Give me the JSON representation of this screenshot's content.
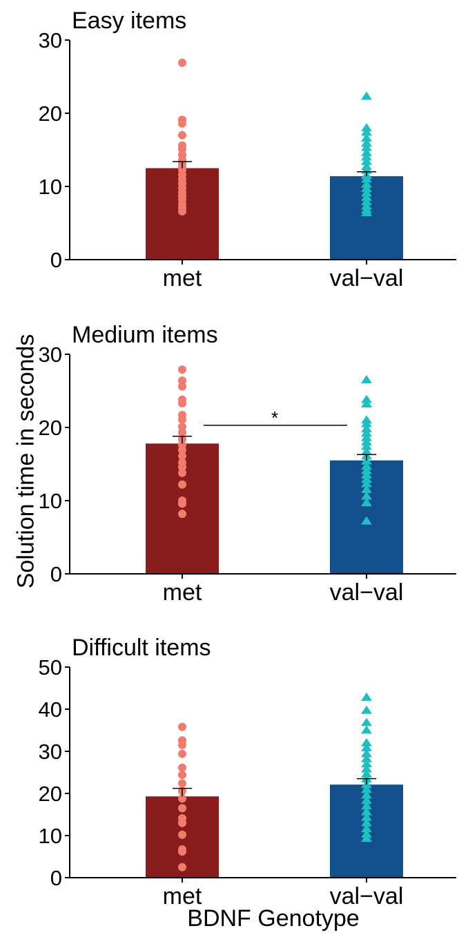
{
  "ylabel": "Solution time in seconds",
  "xlabel": "BDNF Genotype",
  "colors": {
    "met_bar": "#8a1c1b",
    "valval_bar": "#124f8c",
    "met_points": "#f07b6f",
    "valval_points": "#1ebfc3"
  },
  "chart_data": [
    {
      "type": "bar",
      "title": "Easy items",
      "categories": [
        "met",
        "val−val"
      ],
      "values": [
        12.5,
        11.4
      ],
      "error_upper": [
        13.4,
        12.0
      ],
      "ylim": [
        0,
        30
      ],
      "yticks": [
        "0",
        "10",
        "20",
        "30"
      ],
      "points": [
        [
          26.9,
          19.1,
          18.6,
          17.0,
          15.6,
          15.1,
          14.3,
          13.6,
          13.1,
          12.6,
          12.2,
          11.6,
          11.0,
          10.4,
          9.8,
          9.2,
          8.7,
          8.2,
          7.6,
          7.1,
          6.6
        ],
        [
          22.3,
          18.0,
          17.4,
          16.6,
          15.9,
          15.3,
          14.6,
          14.0,
          13.4,
          12.7,
          12.2,
          11.5,
          11.0,
          10.3,
          9.7,
          9.1,
          8.5,
          7.9,
          7.3,
          6.8,
          6.4
        ]
      ],
      "significance": ""
    },
    {
      "type": "bar",
      "title": "Medium items",
      "categories": [
        "met",
        "val−val"
      ],
      "values": [
        17.8,
        15.5
      ],
      "error_upper": [
        18.8,
        16.3
      ],
      "ylim": [
        0,
        30
      ],
      "yticks": [
        "0",
        "10",
        "20",
        "30"
      ],
      "points": [
        [
          27.9,
          26.4,
          25.6,
          23.8,
          23.3,
          21.7,
          21.1,
          20.1,
          19.3,
          18.4,
          17.6,
          16.9,
          16.1,
          15.2,
          14.6,
          13.8,
          12.2,
          10.0,
          9.6,
          8.2
        ],
        [
          26.5,
          23.8,
          23.2,
          21.0,
          20.5,
          19.8,
          19.2,
          18.6,
          18.0,
          17.4,
          16.7,
          16.1,
          15.4,
          14.7,
          14.1,
          13.5,
          12.9,
          12.3,
          11.5,
          10.6,
          9.7,
          7.2
        ]
      ],
      "significance": "*"
    },
    {
      "type": "bar",
      "title": "Difficult items",
      "categories": [
        "met",
        "val−val"
      ],
      "values": [
        19.3,
        22.1
      ],
      "error_upper": [
        21.2,
        23.5
      ],
      "ylim": [
        0,
        50
      ],
      "yticks": [
        "0",
        "10",
        "20",
        "30",
        "40",
        "50"
      ],
      "points": [
        [
          35.8,
          32.6,
          31.5,
          29.4,
          26.1,
          24.4,
          22.4,
          20.6,
          18.8,
          16.5,
          14.1,
          13.0,
          10.2,
          6.7,
          6.2,
          2.5
        ],
        [
          42.8,
          39.7,
          36.8,
          35.0,
          32.0,
          30.8,
          29.4,
          28.2,
          27.0,
          25.8,
          24.6,
          23.4,
          22.1,
          20.9,
          19.6,
          18.3,
          17.0,
          15.6,
          14.3,
          13.0,
          11.6,
          10.3,
          9.3
        ]
      ],
      "significance": ""
    }
  ]
}
